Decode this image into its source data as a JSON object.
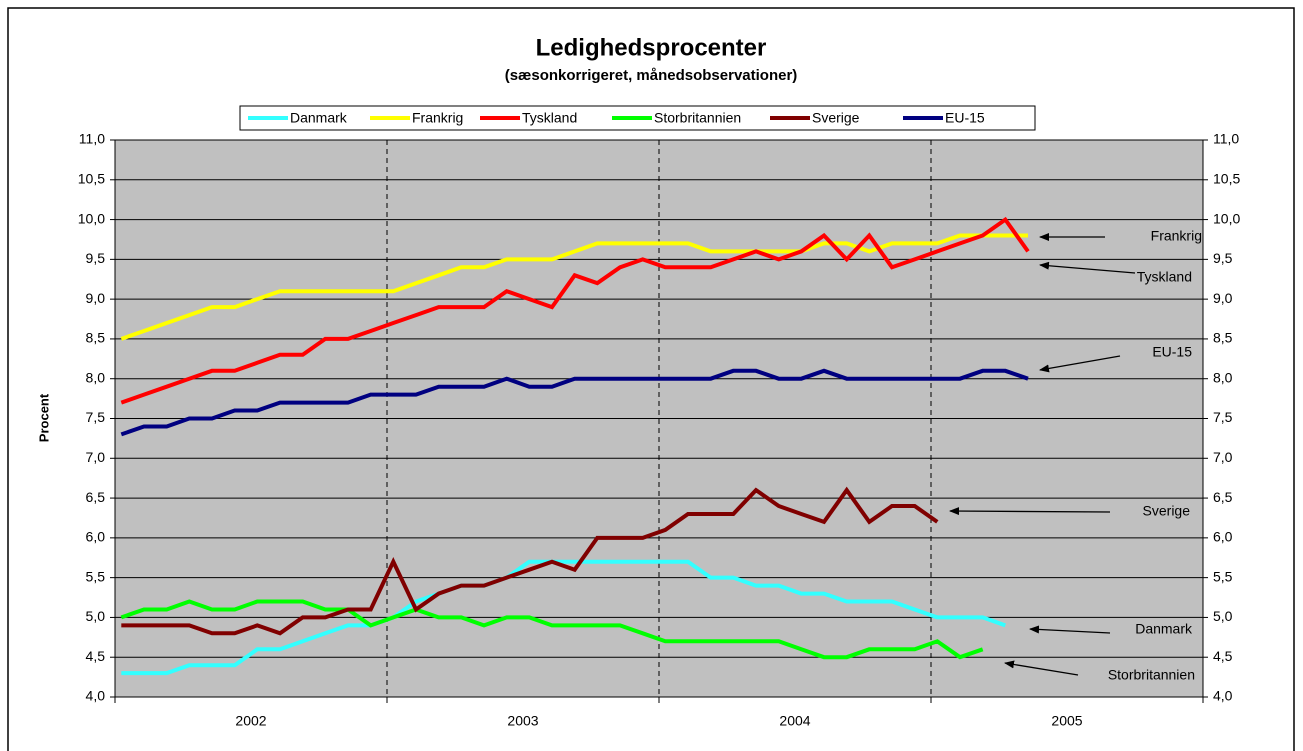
{
  "chart_data": {
    "type": "line",
    "title": "Ledighedsprocenter",
    "subtitle": "(sæsonkorrigeret, månedsobservationer)",
    "y_label": "Procent",
    "categories": [
      null,
      null,
      null,
      null,
      null,
      null,
      "2002",
      null,
      null,
      null,
      null,
      null,
      null,
      null,
      null,
      null,
      null,
      null,
      "2003",
      null,
      null,
      null,
      null,
      null,
      null,
      null,
      null,
      null,
      null,
      null,
      "2004",
      null,
      null,
      null,
      null,
      null,
      null,
      null,
      null,
      null,
      null,
      null,
      "2005",
      null,
      null,
      null,
      null,
      null
    ],
    "series": [
      {
        "name": "Danmark",
        "color": "#33ffff",
        "values": [
          4.3,
          4.3,
          4.3,
          4.4,
          4.4,
          4.4,
          4.6,
          4.6,
          4.7,
          4.8,
          4.9,
          4.9,
          5.0,
          5.2,
          5.3,
          5.4,
          5.4,
          5.5,
          5.7,
          5.7,
          5.7,
          5.7,
          5.7,
          5.7,
          5.7,
          5.7,
          5.5,
          5.5,
          5.4,
          5.4,
          5.3,
          5.3,
          5.2,
          5.2,
          5.2,
          5.1,
          5.0,
          5.0,
          5.0,
          4.9,
          null,
          null,
          null,
          null,
          null,
          null,
          null,
          null
        ]
      },
      {
        "name": "Frankrig",
        "color": "#ffff00",
        "values": [
          8.5,
          8.6,
          8.7,
          8.8,
          8.9,
          8.9,
          9.0,
          9.1,
          9.1,
          9.1,
          9.1,
          9.1,
          9.1,
          9.2,
          9.3,
          9.4,
          9.4,
          9.5,
          9.5,
          9.5,
          9.6,
          9.7,
          9.7,
          9.7,
          9.7,
          9.7,
          9.6,
          9.6,
          9.6,
          9.6,
          9.6,
          9.7,
          9.7,
          9.6,
          9.7,
          9.7,
          9.7,
          9.8,
          9.8,
          9.8,
          9.8,
          null,
          null,
          null,
          null,
          null,
          null,
          null
        ]
      },
      {
        "name": "Tyskland",
        "color": "#ff0000",
        "values": [
          7.7,
          7.8,
          7.9,
          8.0,
          8.1,
          8.1,
          8.2,
          8.3,
          8.3,
          8.5,
          8.5,
          8.6,
          8.7,
          8.8,
          8.9,
          8.9,
          8.9,
          9.1,
          9.0,
          8.9,
          9.3,
          9.2,
          9.4,
          9.5,
          9.4,
          9.4,
          9.4,
          9.5,
          9.6,
          9.5,
          9.6,
          9.8,
          9.5,
          9.8,
          9.4,
          9.5,
          9.6,
          9.7,
          9.8,
          10.0,
          9.6,
          null,
          null,
          null,
          null,
          null,
          null,
          null
        ]
      },
      {
        "name": "Storbritannien",
        "color": "#00ff00",
        "values": [
          5.0,
          5.1,
          5.1,
          5.2,
          5.1,
          5.1,
          5.2,
          5.2,
          5.2,
          5.1,
          5.1,
          4.9,
          5.0,
          5.1,
          5.0,
          5.0,
          4.9,
          5.0,
          5.0,
          4.9,
          4.9,
          4.9,
          4.9,
          4.8,
          4.7,
          4.7,
          4.7,
          4.7,
          4.7,
          4.7,
          4.6,
          4.5,
          4.5,
          4.6,
          4.6,
          4.6,
          4.7,
          4.5,
          4.6,
          null,
          null,
          null,
          null,
          null,
          null,
          null,
          null,
          null
        ]
      },
      {
        "name": "Sverige",
        "color": "#800000",
        "values": [
          4.9,
          4.9,
          4.9,
          4.9,
          4.8,
          4.8,
          4.9,
          4.8,
          5.0,
          5.0,
          5.1,
          5.1,
          5.7,
          5.1,
          5.3,
          5.4,
          5.4,
          5.5,
          5.6,
          5.7,
          5.6,
          6.0,
          6.0,
          6.0,
          6.1,
          6.3,
          6.3,
          6.3,
          6.6,
          6.4,
          6.3,
          6.2,
          6.6,
          6.2,
          6.4,
          6.4,
          6.2,
          null,
          null,
          null,
          null,
          null,
          null,
          null,
          null,
          null,
          null,
          null
        ]
      },
      {
        "name": "EU-15",
        "color": "#000080",
        "values": [
          7.3,
          7.4,
          7.4,
          7.5,
          7.5,
          7.6,
          7.6,
          7.7,
          7.7,
          7.7,
          7.7,
          7.8,
          7.8,
          7.8,
          7.9,
          7.9,
          7.9,
          8.0,
          7.9,
          7.9,
          8.0,
          8.0,
          8.0,
          8.0,
          8.0,
          8.0,
          8.0,
          8.1,
          8.1,
          8.0,
          8.0,
          8.1,
          8.0,
          8.0,
          8.0,
          8.0,
          8.0,
          8.0,
          8.1,
          8.1,
          8.0,
          null,
          null,
          null,
          null,
          null,
          null,
          null
        ]
      }
    ],
    "ylim": [
      4.0,
      11.0
    ],
    "yticks": [
      {
        "value": 4.0,
        "label": "4,0"
      },
      {
        "value": 4.5,
        "label": "4,5"
      },
      {
        "value": 5.0,
        "label": "5,0"
      },
      {
        "value": 5.5,
        "label": "5,5"
      },
      {
        "value": 6.0,
        "label": "6,0"
      },
      {
        "value": 6.5,
        "label": "6,5"
      },
      {
        "value": 7.0,
        "label": "7,0"
      },
      {
        "value": 7.5,
        "label": "7,5"
      },
      {
        "value": 8.0,
        "label": "8,0"
      },
      {
        "value": 8.5,
        "label": "8,5"
      },
      {
        "value": 9.0,
        "label": "9,0"
      },
      {
        "value": 9.5,
        "label": "9,5"
      },
      {
        "value": 10.0,
        "label": "10,0"
      },
      {
        "value": 10.5,
        "label": "10,5"
      },
      {
        "value": 11.0,
        "label": "11,0"
      }
    ],
    "y2lim": [
      4.0,
      11.0
    ],
    "y2ticks": [
      {
        "value": 4.0,
        "label": "4,0"
      },
      {
        "value": 4.5,
        "label": "4,5"
      },
      {
        "value": 5.0,
        "label": "5,0"
      },
      {
        "value": 5.5,
        "label": "5,5"
      },
      {
        "value": 6.0,
        "label": "6,0"
      },
      {
        "value": 6.5,
        "label": "6,5"
      },
      {
        "value": 7.0,
        "label": "7,0"
      },
      {
        "value": 7.5,
        "label": "7,5"
      },
      {
        "value": 8.0,
        "label": "8,0"
      },
      {
        "value": 8.5,
        "label": "8,5"
      },
      {
        "value": 9.0,
        "label": "9,0"
      },
      {
        "value": 9.5,
        "label": "9,5"
      },
      {
        "value": 10.0,
        "label": "10,0"
      },
      {
        "value": 10.5,
        "label": "10,5"
      },
      {
        "value": 11.0,
        "label": "11,0"
      }
    ],
    "grid": true,
    "legend": "top",
    "annotations": [
      "Frankrig",
      "Tyskland",
      "EU-15",
      "Sverige",
      "Danmark",
      "Storbritannien"
    ]
  }
}
